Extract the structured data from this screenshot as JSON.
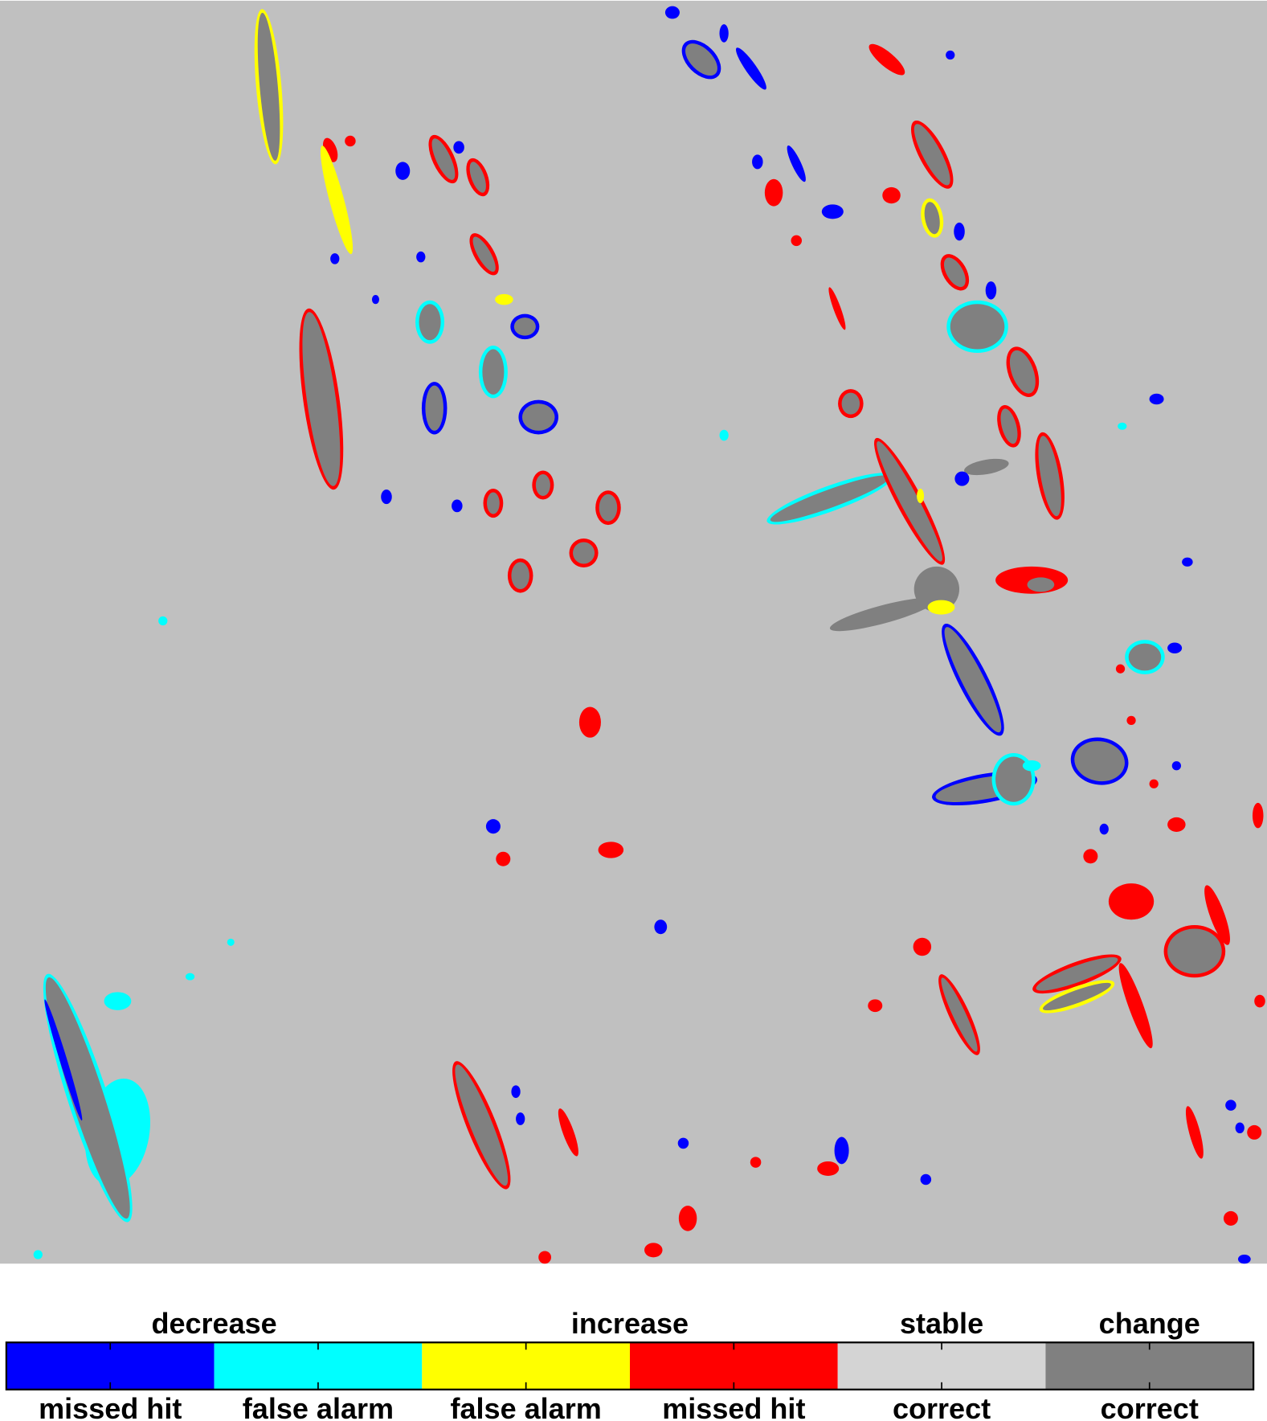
{
  "legend": {
    "groups": [
      {
        "label": "decrease",
        "items": [
          {
            "label": "missed hit",
            "color": "#0000ff"
          },
          {
            "label": "false alarm",
            "color": "#00ffff"
          }
        ]
      },
      {
        "label": "increase",
        "items": [
          {
            "label": "false alarm",
            "color": "#ffff00"
          },
          {
            "label": "missed hit",
            "color": "#ff0000"
          }
        ]
      },
      {
        "label": "stable",
        "items": [
          {
            "label": "correct",
            "color": "#d4d4d4"
          }
        ]
      },
      {
        "label": "change",
        "items": [
          {
            "label": "correct",
            "color": "#808080"
          }
        ]
      }
    ]
  }
}
